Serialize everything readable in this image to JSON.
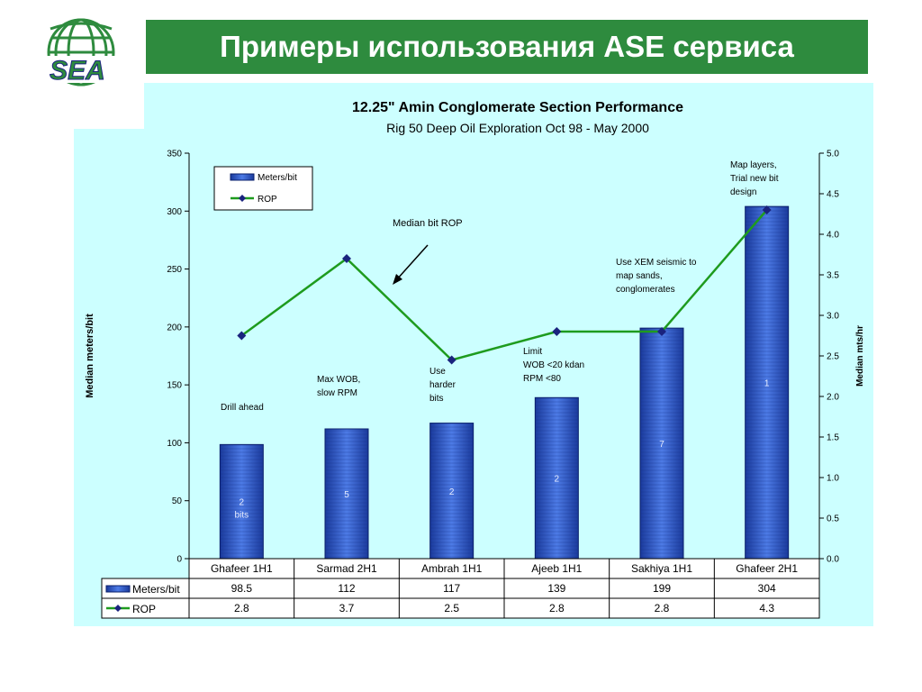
{
  "slide": {
    "title": "Примеры использования ASE сервиса",
    "logo_text": "SEA"
  },
  "colors": {
    "title_bar": "#2e8b3e",
    "panel": "#ccffff",
    "bar": "#3a5fcd",
    "line": "#1e9b1e",
    "marker": "#1a237e"
  },
  "chart_data": {
    "type": "bar",
    "title": "12.25\" Amin Conglomerate Section Performance",
    "subtitle": "Rig 50  Deep Oil Exploration  Oct 98 - May 2000",
    "categories": [
      "Ghafeer 1H1",
      "Sarmad 2H1",
      "Ambrah 1H1",
      "Ajeeb 1H1",
      "Sakhiya 1H1",
      "Ghafeer 2H1"
    ],
    "series": [
      {
        "name": "Meters/bit",
        "type": "bar",
        "axis": "left",
        "values": [
          98.5,
          112,
          117,
          139,
          199,
          304
        ]
      },
      {
        "name": "ROP",
        "type": "line",
        "axis": "right",
        "values": [
          2.75,
          3.7,
          2.45,
          2.8,
          2.8,
          4.3
        ]
      }
    ],
    "table_values": {
      "Meters/bit": [
        "98.5",
        "112",
        "117",
        "139",
        "199",
        "304"
      ],
      "ROP": [
        "2.8",
        "3.7",
        "2.5",
        "2.8",
        "2.8",
        "4.3"
      ]
    },
    "ylabel": "Median meters/bit",
    "y2label": "Median mts/hr",
    "ylim": [
      0,
      350
    ],
    "y2lim": [
      0,
      5.0
    ],
    "yticks": [
      "0",
      "50",
      "100",
      "150",
      "200",
      "250",
      "300",
      "350"
    ],
    "y2ticks": [
      "0.0",
      "0.5",
      "1.0",
      "1.5",
      "2.0",
      "2.5",
      "3.0",
      "3.5",
      "4.0",
      "4.5",
      "5.0"
    ],
    "bar_labels": [
      [
        "2",
        "bits"
      ],
      [
        "5"
      ],
      [
        "2"
      ],
      [
        "2"
      ],
      [
        "7"
      ],
      [
        "1"
      ]
    ],
    "annotations": [
      {
        "lines": [
          "Drill  ahead"
        ]
      },
      {
        "lines": [
          "Max WOB,",
          " slow RPM"
        ]
      },
      {
        "lines": [
          "Median bit ROP"
        ]
      },
      {
        "lines": [
          "Use",
          "harder",
          "bits"
        ]
      },
      {
        "lines": [
          "Limit",
          " WOB <20 kdan",
          "RPM <80"
        ]
      },
      {
        "lines": [
          "Use XEM seismic to",
          "map sands,",
          "conglomerates"
        ]
      },
      {
        "lines": [
          "Map layers,",
          "Trial new bit",
          "design"
        ]
      }
    ],
    "legend": [
      "Meters/bit",
      "ROP"
    ],
    "legend_position": "top-left",
    "grid": false
  }
}
